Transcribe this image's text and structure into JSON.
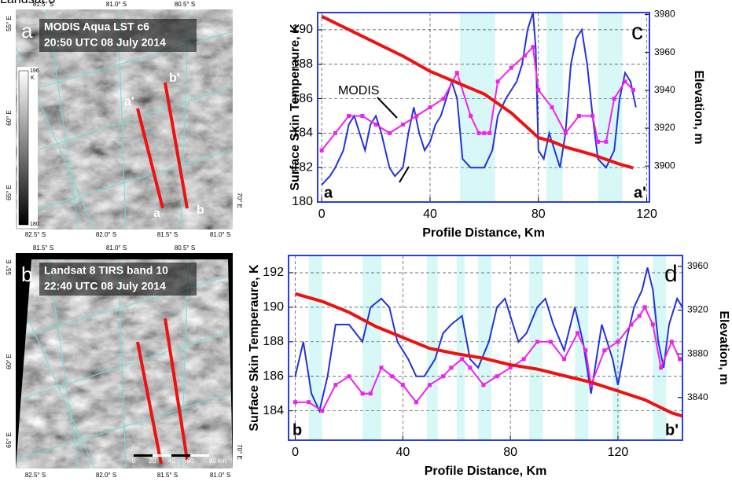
{
  "maps": [
    {
      "panel_label": "a",
      "title_lines": [
        "MODIS Aqua LST c6",
        "20:50 UTC 08 July 2014"
      ],
      "top_labels": [
        "81.5° S",
        "81.0° S",
        "80.5° S"
      ],
      "bottom_labels": [
        "82.5° S",
        "82.0° S",
        "81.5° S",
        "81.0° S"
      ],
      "left_labels": [
        "55° E",
        "60° E",
        "65° E"
      ],
      "right_labels": [
        "70° E"
      ],
      "point_labels": [
        "a'",
        "b'",
        "a",
        "b"
      ],
      "colorbar": {
        "max_label": "196",
        "unit": "K",
        "min_label": "180"
      }
    },
    {
      "panel_label": "b",
      "title_lines": [
        "Landsat 8 TIRS band 10",
        "22:40 UTC 08 July 2014"
      ],
      "top_labels": [
        "81.5° S",
        "81.0° S",
        "80.5° S"
      ],
      "bottom_labels": [
        "82.5° S",
        "82.0° S",
        "81.5° S",
        "81.0° S"
      ],
      "left_labels": [
        "55° E",
        "60° E",
        "65° E"
      ],
      "right_labels": [
        "70° E"
      ],
      "scale_labels": [
        "0",
        "20",
        "40",
        "60",
        "80 km"
      ]
    }
  ],
  "chart_data": [
    {
      "type": "line",
      "panel_label": "c",
      "corner_labels": [
        "a",
        "a'"
      ],
      "x_label": "Profile Distance, Km",
      "y_label": "Surface Skin Temperaure, K",
      "y2_label": "Elevation, m",
      "xlim": [
        -1.5,
        121
      ],
      "xticks": [
        0,
        40,
        80,
        120
      ],
      "ylim": [
        180,
        191
      ],
      "yticks": [
        180,
        182,
        184,
        186,
        188,
        190
      ],
      "y2lim": [
        3881,
        3981
      ],
      "y2ticks": [
        3900,
        3920,
        3940,
        3960,
        3980
      ],
      "grid": true,
      "shaded_regions": [
        [
          51,
          64
        ],
        [
          83,
          89
        ],
        [
          102,
          111
        ]
      ],
      "series": [
        {
          "name": "Landsat 8",
          "color": "#2233dd",
          "x": [
            0,
            3,
            5,
            8,
            10,
            12,
            14,
            16,
            18,
            20,
            22,
            25,
            27,
            30,
            32,
            34,
            36,
            38,
            40,
            42,
            44,
            46,
            48,
            50,
            52,
            55,
            60,
            63,
            65,
            68,
            70,
            72,
            74,
            76,
            78,
            79,
            80,
            82,
            84,
            86,
            88,
            90,
            92,
            94,
            96,
            98,
            100,
            102,
            105,
            108,
            110,
            112,
            114,
            116
          ],
          "values": [
            181,
            181.5,
            182,
            183,
            184.5,
            185,
            184,
            183,
            184.5,
            185,
            184,
            182,
            181.5,
            182,
            184,
            185.5,
            184,
            183,
            183.5,
            184.5,
            185,
            186,
            187,
            186,
            182.5,
            182,
            182,
            183,
            185,
            186,
            186.5,
            187,
            188,
            190,
            191,
            189,
            183,
            182.5,
            184,
            183,
            182,
            184,
            188,
            189.5,
            190,
            188,
            185,
            182.5,
            182,
            183,
            186,
            187.5,
            187,
            185.5
          ]
        },
        {
          "name": "MODIS",
          "color": "#ee22ee",
          "marker": "square",
          "x": [
            0,
            5,
            10,
            15,
            20,
            25,
            30,
            35,
            40,
            45,
            50,
            55,
            58,
            60,
            62,
            65,
            70,
            75,
            78,
            80,
            85,
            90,
            95,
            100,
            102,
            105,
            108,
            112,
            115
          ],
          "values": [
            183,
            184,
            185,
            185,
            184.5,
            184,
            184.5,
            185,
            185.5,
            186,
            187.5,
            185,
            184,
            184,
            184,
            187,
            187.8,
            188.5,
            189,
            186.5,
            185.5,
            184,
            185,
            185,
            183.5,
            183.5,
            186,
            187,
            186.5
          ]
        },
        {
          "color": "#ee1111",
          "axis": "y2",
          "x": [
            0,
            10,
            20,
            30,
            40,
            50,
            60,
            70,
            80,
            85,
            90,
            100,
            110,
            115
          ],
          "values": [
            3979,
            3972,
            3965,
            3958,
            3950,
            3944,
            3938,
            3928,
            3915,
            3913,
            3910,
            3906,
            3901,
            3899
          ]
        }
      ]
    },
    {
      "type": "line",
      "panel_label": "d",
      "corner_labels": [
        "b",
        "b'"
      ],
      "x_label": "Profile Distance, Km",
      "y_label": "Surface Skin Temperaure, K",
      "y2_label": "Elevation, m",
      "xlim": [
        -2.5,
        144
      ],
      "xticks": [
        0,
        40,
        80,
        120
      ],
      "ylim": [
        182.3,
        193
      ],
      "yticks": [
        184,
        186,
        188,
        190,
        192
      ],
      "y2lim": [
        3801,
        3970
      ],
      "y2ticks": [
        3840,
        3880,
        3920,
        3960
      ],
      "grid": true,
      "shaded_regions": [
        [
          5,
          10
        ],
        [
          25,
          32
        ],
        [
          49,
          53
        ],
        [
          60,
          63
        ],
        [
          68,
          73
        ],
        [
          87,
          92
        ],
        [
          104,
          109
        ],
        [
          118,
          121
        ],
        [
          133,
          138
        ]
      ],
      "series": [
        {
          "color": "#2233dd",
          "x": [
            0,
            3,
            6,
            9,
            12,
            15,
            20,
            25,
            28,
            32,
            35,
            38,
            42,
            45,
            48,
            52,
            55,
            58,
            62,
            65,
            68,
            72,
            75,
            78,
            80,
            83,
            86,
            90,
            93,
            96,
            100,
            104,
            107,
            110,
            114,
            118,
            120,
            123,
            126,
            129,
            131,
            133,
            135,
            137,
            139,
            142,
            144
          ],
          "values": [
            186,
            188,
            185,
            184,
            186,
            189,
            189,
            188,
            190,
            190.5,
            190,
            188,
            187,
            186,
            186,
            187,
            188.5,
            189,
            189.5,
            187,
            186.5,
            188,
            190,
            190.5,
            189.5,
            188,
            188.5,
            190,
            190.5,
            189,
            187.5,
            190,
            188,
            185,
            189,
            187,
            185.5,
            188,
            190,
            191,
            192.3,
            191,
            188,
            186.5,
            189,
            190.5,
            190
          ]
        },
        {
          "color": "#ee22ee",
          "marker": "square",
          "x": [
            0,
            5,
            10,
            15,
            20,
            25,
            28,
            32,
            36,
            40,
            45,
            50,
            55,
            58,
            62,
            65,
            70,
            75,
            80,
            85,
            90,
            95,
            100,
            105,
            108,
            110,
            115,
            120,
            125,
            128,
            130,
            133,
            136,
            140,
            143
          ],
          "values": [
            184.5,
            184.5,
            184,
            185.5,
            186,
            185,
            185,
            186.5,
            186,
            185.5,
            184.5,
            185.5,
            186,
            186.5,
            187,
            186.5,
            185.5,
            186,
            186.5,
            187,
            188,
            188,
            187,
            188.5,
            187.5,
            185.5,
            187.5,
            188,
            189,
            189.5,
            190,
            189,
            186.5,
            188,
            187
          ]
        },
        {
          "color": "#ee1111",
          "axis": "y2",
          "x": [
            0,
            10,
            20,
            30,
            40,
            50,
            60,
            70,
            80,
            90,
            100,
            110,
            120,
            130,
            140,
            144
          ],
          "values": [
            3935,
            3928,
            3918,
            3905,
            3895,
            3885,
            3880,
            3876,
            3870,
            3866,
            3860,
            3854,
            3846,
            3838,
            3826,
            3823
          ]
        }
      ]
    }
  ]
}
